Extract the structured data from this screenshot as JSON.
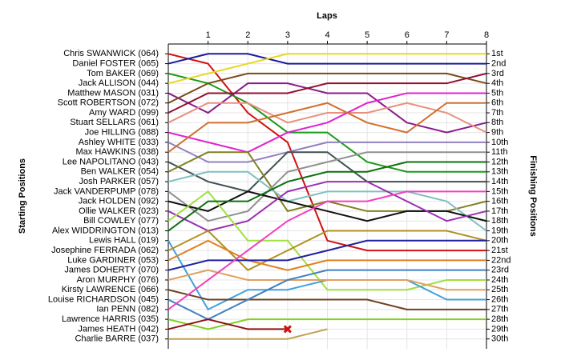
{
  "chart_data": {
    "type": "line",
    "x_label": "Laps",
    "y_label": "Starting Positions",
    "y2_label": "Finishing Positions",
    "x": [
      0,
      1,
      2,
      3,
      4,
      5,
      6,
      7,
      8
    ],
    "xlim": [
      0,
      8
    ],
    "xticks": [
      1,
      2,
      3,
      4,
      5,
      6,
      7,
      8
    ],
    "ylim": [
      31,
      0
    ],
    "y2ticks": [
      {
        "value": 1,
        "label": "1st"
      },
      {
        "value": 2,
        "label": "2nd"
      },
      {
        "value": 3,
        "label": "3rd"
      },
      {
        "value": 4,
        "label": "4th"
      },
      {
        "value": 5,
        "label": "5th"
      },
      {
        "value": 6,
        "label": "6th"
      },
      {
        "value": 7,
        "label": "7th"
      },
      {
        "value": 8,
        "label": "8th"
      },
      {
        "value": 9,
        "label": "9th"
      },
      {
        "value": 10,
        "label": "10th"
      },
      {
        "value": 11,
        "label": "11th"
      },
      {
        "value": 12,
        "label": "12th"
      },
      {
        "value": 13,
        "label": "13th"
      },
      {
        "value": 14,
        "label": "14th"
      },
      {
        "value": 15,
        "label": "15th"
      },
      {
        "value": 16,
        "label": "16th"
      },
      {
        "value": 17,
        "label": "17th"
      },
      {
        "value": 18,
        "label": "18th"
      },
      {
        "value": 19,
        "label": "19th"
      },
      {
        "value": 20,
        "label": "20th"
      },
      {
        "value": 21,
        "label": "21st"
      },
      {
        "value": 22,
        "label": "22nd"
      },
      {
        "value": 23,
        "label": "23rd"
      },
      {
        "value": 24,
        "label": "24th"
      },
      {
        "value": 25,
        "label": "25th"
      },
      {
        "value": 26,
        "label": "26th"
      },
      {
        "value": 27,
        "label": "27th"
      },
      {
        "value": 28,
        "label": "28th"
      },
      {
        "value": 29,
        "label": "29th"
      },
      {
        "value": 30,
        "label": "30th"
      }
    ],
    "grid": true,
    "series": [
      {
        "name": "Chris SWANWICK (064)",
        "color": "#d01010",
        "values": [
          1,
          2,
          7,
          10,
          20,
          21,
          21,
          21,
          21
        ]
      },
      {
        "name": "Daniel FOSTER (065)",
        "color": "#1a1aa0",
        "values": [
          2,
          1,
          1,
          2,
          2,
          2,
          2,
          2,
          2
        ]
      },
      {
        "name": "Tom BAKER (069)",
        "color": "#1a9a1a",
        "values": [
          3,
          4,
          6,
          9,
          9,
          12,
          13,
          13,
          13
        ]
      },
      {
        "name": "Jack ALLISON (044)",
        "color": "#e8d820",
        "values": [
          4,
          3,
          2,
          1,
          1,
          1,
          1,
          1,
          1
        ]
      },
      {
        "name": "Matthew MASON (031)",
        "color": "#8a1a8a",
        "values": [
          5,
          7,
          4,
          4,
          5,
          5,
          8,
          9,
          8
        ]
      },
      {
        "name": "Scott ROBERTSON (072)",
        "color": "#7a4a1a",
        "values": [
          6,
          4,
          3,
          3,
          3,
          3,
          3,
          3,
          4
        ]
      },
      {
        "name": "Amy WARD (099)",
        "color": "#901030",
        "values": [
          7,
          5,
          5,
          5,
          4,
          4,
          4,
          4,
          3
        ]
      },
      {
        "name": "Stuart SELLARS (061)",
        "color": "#e89080",
        "values": [
          8,
          6,
          6,
          8,
          7,
          7,
          6,
          7,
          9
        ]
      },
      {
        "name": "Joe HILLING (088)",
        "color": "#e020d0",
        "values": [
          9,
          10,
          11,
          9,
          8,
          6,
          5,
          5,
          5
        ]
      },
      {
        "name": "Ashley WHITE (033)",
        "color": "#9080c0",
        "values": [
          10,
          12,
          12,
          11,
          10,
          10,
          10,
          10,
          10
        ]
      },
      {
        "name": "Max HAWKINS (038)",
        "color": "#d07030",
        "values": [
          11,
          8,
          8,
          7,
          6,
          8,
          9,
          6,
          6
        ]
      },
      {
        "name": "Lee NAPOLITANO (043)",
        "color": "#405050",
        "values": [
          12,
          14,
          15,
          11,
          11,
          14,
          14,
          14,
          14
        ]
      },
      {
        "name": "Ben WALKER (054)",
        "color": "#808020",
        "values": [
          13,
          11,
          11,
          17,
          16,
          17,
          17,
          17,
          16
        ]
      },
      {
        "name": "Josh PARKER (057)",
        "color": "#80c0c0",
        "values": [
          14,
          13,
          13,
          16,
          15,
          15,
          15,
          16,
          19
        ]
      },
      {
        "name": "Jack VANDERPUMP (078)",
        "color": "#909090",
        "values": [
          15,
          18,
          17,
          13,
          12,
          11,
          11,
          11,
          11
        ]
      },
      {
        "name": "Jack HOLDEN (092)",
        "color": "#101010",
        "values": [
          16,
          17,
          15,
          16,
          17,
          18,
          17,
          17,
          18
        ]
      },
      {
        "name": "Ollie WALKER (023)",
        "color": "#9a30b0",
        "values": [
          17,
          19,
          18,
          15,
          14,
          14,
          16,
          18,
          17
        ]
      },
      {
        "name": "Bill COWLEY (077)",
        "color": "#a0e040",
        "values": [
          18,
          15,
          20,
          20,
          25,
          25,
          25,
          24,
          24
        ]
      },
      {
        "name": "Alex WIDDRINGTON (013)",
        "color": "#107010",
        "values": [
          19,
          16,
          16,
          14,
          13,
          13,
          12,
          12,
          12
        ]
      },
      {
        "name": "Lewis HALL (019)",
        "color": "#40a0e0",
        "values": [
          20,
          27,
          25,
          25,
          24,
          24,
          24,
          26,
          26
        ]
      },
      {
        "name": "Josephine FERRADA (062)",
        "color": "#b09020",
        "values": [
          21,
          19,
          23,
          21,
          19,
          19,
          19,
          19,
          20
        ]
      },
      {
        "name": "Luke GARDINER (053)",
        "color": "#e08020",
        "values": [
          22,
          20,
          22,
          23,
          22,
          22,
          22,
          22,
          22
        ]
      },
      {
        "name": "James DOHERTY (070)",
        "color": "#2020a0",
        "values": [
          23,
          22,
          22,
          22,
          21,
          20,
          20,
          20,
          20
        ]
      },
      {
        "name": "Aron MURPHY (076)",
        "color": "#e0a060",
        "values": [
          24,
          23,
          24,
          24,
          24,
          24,
          24,
          25,
          25
        ]
      },
      {
        "name": "Kirsty LAWRENCE (066)",
        "color": "#704020",
        "values": [
          25,
          26,
          26,
          26,
          26,
          26,
          27,
          27,
          27
        ]
      },
      {
        "name": "Louise RICHARDSON (045)",
        "color": "#4080c0",
        "values": [
          26,
          28,
          26,
          24,
          23,
          23,
          23,
          23,
          23
        ]
      },
      {
        "name": "Ian PENN (082)",
        "color": "#f040c0",
        "values": [
          27,
          24,
          21,
          18,
          16,
          16,
          15,
          15,
          15
        ]
      },
      {
        "name": "Lawrence HARRIS (035)",
        "color": "#80d020",
        "values": [
          28,
          29,
          28,
          28,
          28,
          28,
          28,
          28,
          28
        ]
      },
      {
        "name": "James HEATH (042)",
        "color": "#901010",
        "values": [
          29,
          28,
          29,
          29,
          null,
          null,
          null,
          null,
          null
        ],
        "end_marker": "x"
      },
      {
        "name": "Charlie BARRE (037)",
        "color": "#c0a050",
        "values": [
          30,
          30,
          30,
          30,
          29,
          null,
          null,
          null,
          null
        ]
      }
    ]
  }
}
